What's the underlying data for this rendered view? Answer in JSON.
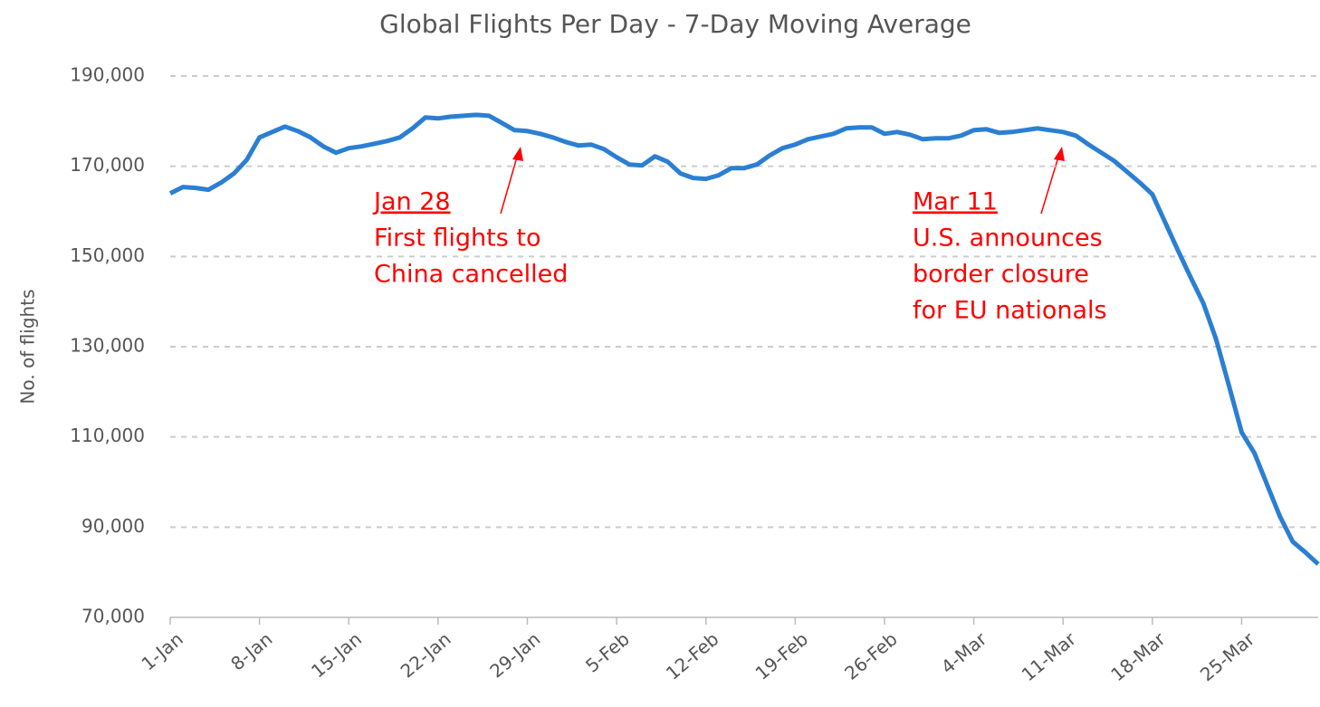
{
  "chart_data": {
    "type": "line",
    "title": "Global Flights Per Day - 7-Day Moving Average",
    "y_label": "No. of flights",
    "categories": [
      "1-Jan",
      null,
      null,
      null,
      null,
      null,
      null,
      "8-Jan",
      null,
      null,
      null,
      null,
      null,
      null,
      "15-Jan",
      null,
      null,
      null,
      null,
      null,
      null,
      "22-Jan",
      null,
      null,
      null,
      null,
      null,
      null,
      "29-Jan",
      null,
      null,
      null,
      null,
      null,
      null,
      "5-Feb",
      null,
      null,
      null,
      null,
      null,
      null,
      "12-Feb",
      null,
      null,
      null,
      null,
      null,
      null,
      "19-Feb",
      null,
      null,
      null,
      null,
      null,
      null,
      "26-Feb",
      null,
      null,
      null,
      null,
      null,
      null,
      "4-Mar",
      null,
      null,
      null,
      null,
      null,
      null,
      "11-Mar",
      null,
      null,
      null,
      null,
      null,
      null,
      "18-Mar",
      null,
      null,
      null,
      null,
      null,
      null,
      "25-Mar",
      null,
      null,
      null,
      null,
      null,
      null
    ],
    "values": [
      164000,
      165400,
      165200,
      164800,
      166400,
      168400,
      171400,
      176400,
      177600,
      178800,
      177800,
      176400,
      174400,
      173000,
      174000,
      174400,
      175000,
      175600,
      176400,
      178400,
      180800,
      180600,
      181000,
      181200,
      181400,
      181200,
      179600,
      178000,
      177800,
      177200,
      176400,
      175400,
      174600,
      174800,
      173800,
      172000,
      170400,
      170200,
      172200,
      171000,
      168400,
      167400,
      167200,
      168000,
      169600,
      169600,
      170400,
      172400,
      174000,
      174800,
      176000,
      176600,
      177200,
      178400,
      178600,
      178600,
      177200,
      177600,
      177000,
      176000,
      176200,
      176200,
      176800,
      178000,
      178200,
      177400,
      177600,
      178000,
      178400,
      178000,
      177600,
      176800,
      174800,
      173000,
      171200,
      168800,
      166400,
      163800,
      157600,
      151400,
      145400,
      139600,
      131600,
      121400,
      111000,
      106400,
      99400,
      92400,
      86800,
      84400,
      81800
    ],
    "color": "#2b7fd3",
    "ylim": [
      70000,
      190000
    ],
    "yticks": [
      {
        "value": 70000,
        "label": "70,000"
      },
      {
        "value": 90000,
        "label": "90,000"
      },
      {
        "value": 110000,
        "label": "110,000"
      },
      {
        "value": 130000,
        "label": "130,000"
      },
      {
        "value": 150000,
        "label": "150,000"
      },
      {
        "value": 170000,
        "label": "170,000"
      },
      {
        "value": 190000,
        "label": "190,000"
      }
    ],
    "grid": true,
    "annotation_color": "#ff0000",
    "annotations": [
      {
        "title": "Jan 28",
        "lines": [
          "First flights to",
          "China cancelled"
        ]
      },
      {
        "title": "Mar 11",
        "lines": [
          "U.S. announces",
          "border closure",
          "for EU nationals"
        ]
      }
    ]
  }
}
